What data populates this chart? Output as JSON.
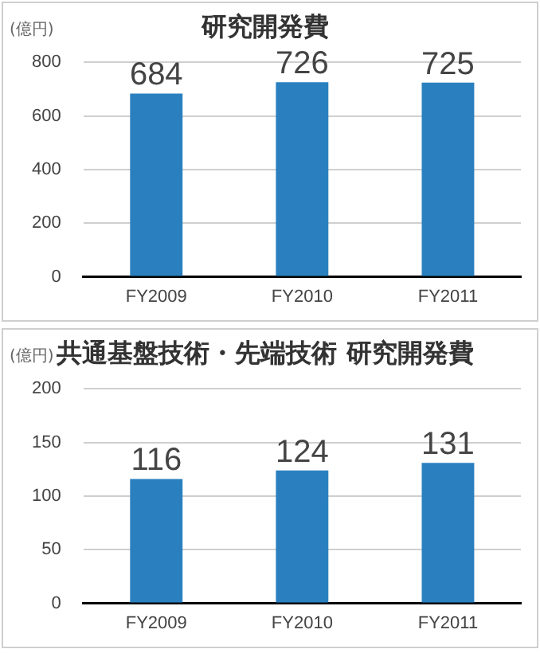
{
  "chart_data": [
    {
      "type": "bar",
      "title": "研究開発費",
      "ylabel": "(億円)",
      "categories": [
        "FY2009",
        "FY2010",
        "FY2011"
      ],
      "values": [
        684,
        726,
        725
      ],
      "color": "#2a80bf",
      "ylim": [
        0,
        800
      ],
      "yticks": [
        0,
        200,
        400,
        600,
        800
      ],
      "grid": "y",
      "data_labels": true
    },
    {
      "type": "bar",
      "title": "共通基盤技術・先端技術 研究開発費",
      "ylabel": "(億円)",
      "categories": [
        "FY2009",
        "FY2010",
        "FY2011"
      ],
      "values": [
        116,
        124,
        131
      ],
      "color": "#2a80bf",
      "ylim": [
        0,
        200
      ],
      "yticks": [
        0,
        50,
        100,
        150,
        200
      ],
      "grid": "y",
      "data_labels": true
    }
  ]
}
